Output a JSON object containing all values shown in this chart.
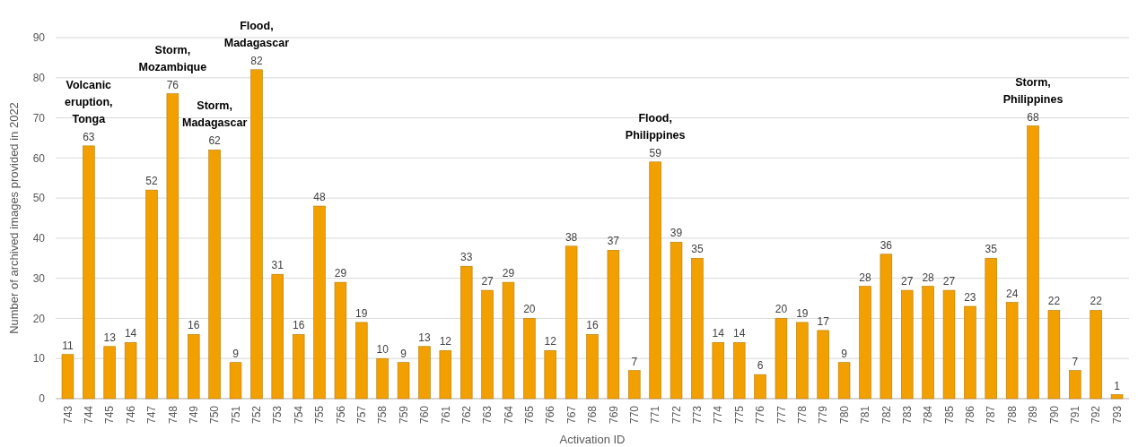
{
  "chart_data": {
    "type": "bar",
    "xlabel": "Activation ID",
    "ylabel": "Number of archived images provided in 2022",
    "categories": [
      "743",
      "744",
      "745",
      "746",
      "747",
      "748",
      "749",
      "750",
      "751",
      "752",
      "753",
      "754",
      "755",
      "756",
      "757",
      "758",
      "759",
      "760",
      "761",
      "762",
      "763",
      "764",
      "765",
      "766",
      "767",
      "768",
      "769",
      "770",
      "771",
      "772",
      "773",
      "774",
      "775",
      "776",
      "777",
      "778",
      "779",
      "780",
      "781",
      "782",
      "783",
      "784",
      "785",
      "786",
      "787",
      "788",
      "789",
      "790",
      "791",
      "792",
      "793"
    ],
    "values": [
      11,
      63,
      13,
      14,
      52,
      76,
      16,
      62,
      9,
      82,
      31,
      16,
      48,
      29,
      19,
      10,
      9,
      13,
      12,
      33,
      27,
      29,
      20,
      12,
      38,
      16,
      37,
      7,
      59,
      39,
      35,
      14,
      14,
      6,
      20,
      19,
      17,
      9,
      28,
      36,
      27,
      28,
      27,
      23,
      35,
      24,
      68,
      22,
      7,
      22,
      1
    ],
    "color": "#f2a000",
    "ylim": [
      0,
      90
    ],
    "yticks": [
      0,
      10,
      20,
      30,
      40,
      50,
      60,
      70,
      80,
      90
    ],
    "grid": "y",
    "data_labels": true,
    "annotations": [
      {
        "text": "Volcanic eruption, Tonga",
        "x": "744",
        "y": 63
      },
      {
        "text": "Storm, Mozambique",
        "x": "748",
        "y": 76
      },
      {
        "text": "Storm, Madagascar",
        "x": "750",
        "y": 62
      },
      {
        "text": "Flood, Madagascar",
        "x": "752",
        "y": 82
      },
      {
        "text": "Flood, Philippines",
        "x": "771",
        "y": 59
      },
      {
        "text": "Storm, Philippines",
        "x": "789",
        "y": 68
      }
    ]
  }
}
